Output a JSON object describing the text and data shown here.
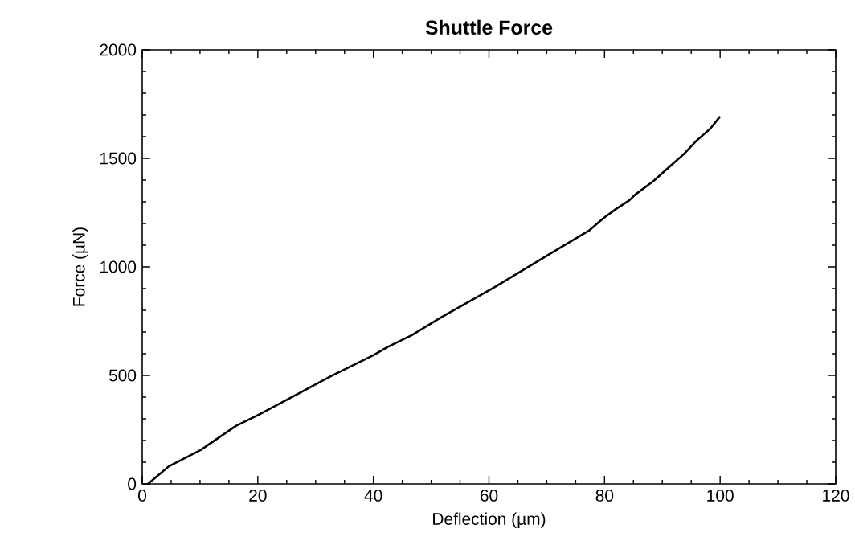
{
  "chart_data": {
    "type": "line",
    "title": "Shuttle Force",
    "xlabel": "Deflection (µm)",
    "ylabel": "Force (µN)",
    "series": [
      {
        "color": "#000000",
        "x": [
          1,
          4.6,
          10.1,
          16.2,
          20.1,
          25.6,
          32.6,
          40,
          42.4,
          46.6,
          51.7,
          61.0,
          70.3,
          77.3,
          79.7,
          82.0,
          84.3,
          85.3,
          88.5,
          91.3,
          93.7,
          95.9,
          98.3,
          100
        ],
        "values": [
          0,
          81,
          156,
          267,
          318,
          396,
          496,
          593,
          630,
          685,
          767,
          907,
          1056,
          1167,
          1222,
          1267,
          1307,
          1333,
          1396,
          1463,
          1519,
          1581,
          1637,
          1693
        ]
      }
    ],
    "xlim": [
      0,
      120
    ],
    "ylim": [
      0,
      2000
    ],
    "xticks": [
      0,
      20,
      40,
      60,
      80,
      100,
      120
    ],
    "yticks": [
      0,
      500,
      1000,
      1500,
      2000
    ],
    "grid": false,
    "marker": "none",
    "line_style": "solid"
  }
}
